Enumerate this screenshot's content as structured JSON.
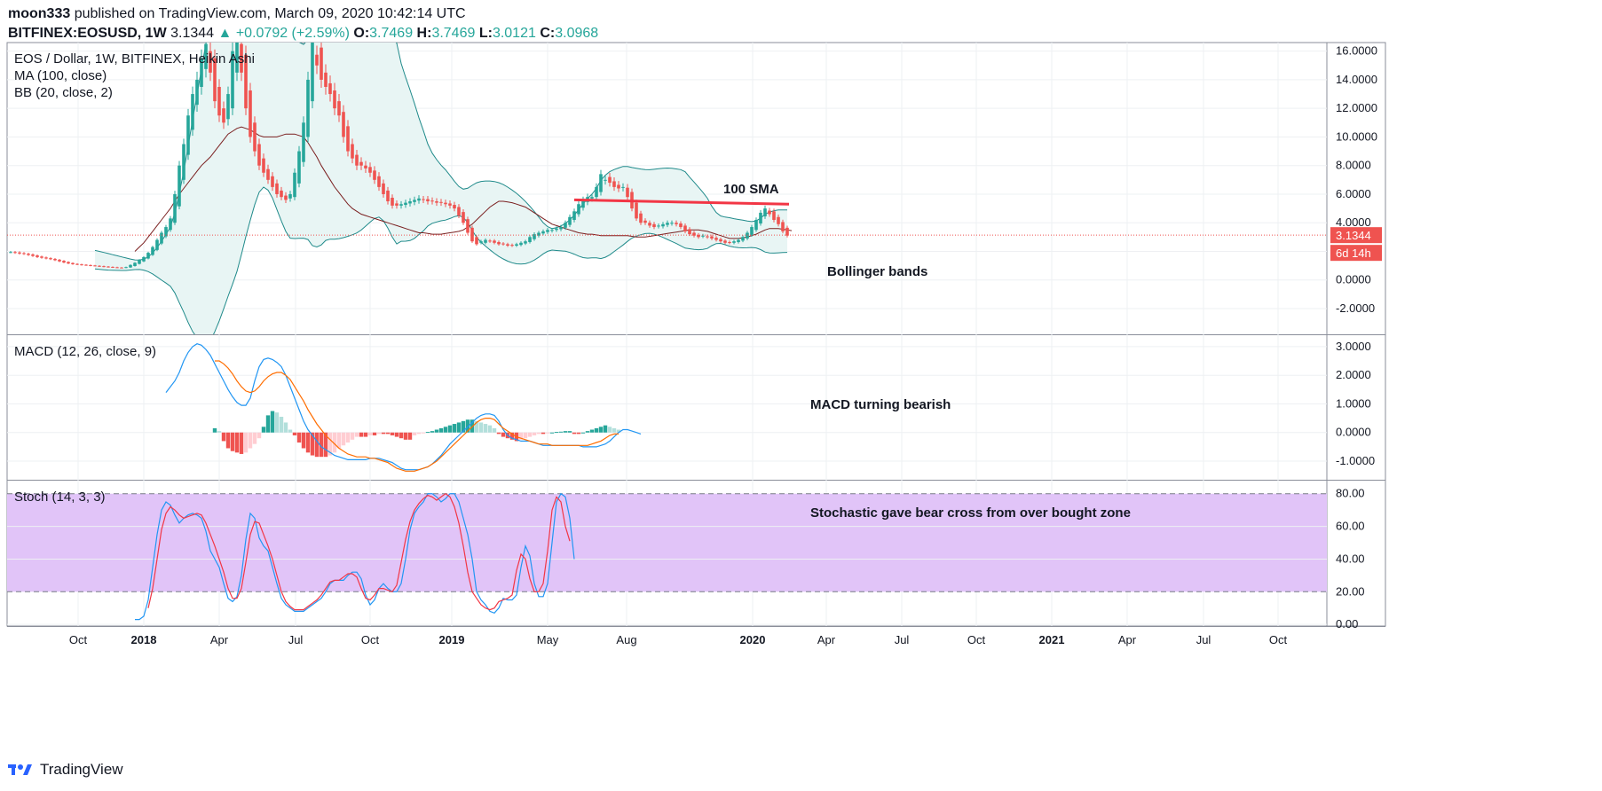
{
  "header": {
    "author": "moon333",
    "published_text": "published on TradingView.com, March 09, 2020 10:42:14 UTC",
    "symbol": "BITFINEX:EOSUSD, 1W",
    "last": "3.1344",
    "change": "+0.0792 (+2.59%)",
    "o_label": "O:",
    "o_value": "3.7469",
    "h_label": "H:",
    "h_value": "3.7469",
    "l_label": "L:",
    "l_value": "3.0121",
    "c_label": "C:",
    "c_value": "3.0968"
  },
  "footer": {
    "brand": "TradingView"
  },
  "colors": {
    "up": "#26a69a",
    "down": "#ef5350",
    "bb_line": "#1f8a8a",
    "bb_fill": "#e8f5f4",
    "ma": "#7a1f1f",
    "sma_annot": "#f23645",
    "macd": "#2196f3",
    "signal": "#ff6d00",
    "hist_up_strong": "#26a69a",
    "hist_up_weak": "#b2dfdb",
    "hist_down_strong": "#ef5350",
    "hist_down_weak": "#ffcdd2",
    "stoch_k": "#2196f3",
    "stoch_d": "#f23645",
    "stoch_band": "#e1c4f8"
  },
  "chart_data": [
    {
      "type": "candlestick",
      "title": "EOS / Dollar, 1W, BITFINEX, Heikin Ashi",
      "indicators": [
        "MA (100, close)",
        "BB (20, close, 2)"
      ],
      "ylim": [
        -3.8,
        16.6
      ],
      "yticks": [
        "16.0000",
        "14.0000",
        "12.0000",
        "10.0000",
        "8.0000",
        "6.0000",
        "4.0000",
        "2.0000",
        "0.0000",
        "-2.0000"
      ],
      "ytick_values": [
        16,
        14,
        12,
        10,
        8,
        6,
        4,
        2,
        0,
        -2
      ],
      "x_labels": [
        "Oct",
        "2018",
        "Apr",
        "Jul",
        "Oct",
        "2019",
        "May",
        "Aug",
        "2020",
        "Apr",
        "Jul",
        "Oct",
        "2021",
        "Apr",
        "Jul",
        "Oct"
      ],
      "last_price_label": "3.1344",
      "countdown_label": "6d 14h",
      "last_price": 3.1344,
      "closes": [
        1.95,
        1.9,
        1.85,
        1.82,
        1.75,
        1.68,
        1.6,
        1.55,
        1.5,
        1.45,
        1.38,
        1.3,
        1.22,
        1.15,
        1.1,
        1.08,
        1.05,
        1.03,
        1.0,
        0.98,
        0.95,
        0.93,
        0.9,
        0.88,
        0.86,
        0.85,
        0.9,
        1.05,
        1.2,
        1.4,
        1.6,
        1.9,
        2.3,
        2.8,
        3.3,
        3.7,
        4.3,
        6.0,
        8.0,
        9.5,
        11.5,
        13.0,
        14.0,
        15.5,
        16.5,
        14.5,
        12.5,
        11.5,
        11.0,
        13.0,
        16.0,
        17.0,
        14.5,
        12.0,
        10.0,
        9.0,
        8.0,
        7.5,
        7.0,
        6.5,
        6.0,
        5.8,
        5.6,
        6.0,
        7.5,
        9.0,
        11.0,
        14.0,
        17.5,
        15.0,
        14.0,
        13.5,
        13.0,
        12.0,
        11.5,
        10.0,
        9.0,
        8.5,
        8.0,
        8.0,
        7.8,
        7.5,
        7.0,
        6.5,
        6.0,
        5.5,
        5.2,
        5.2,
        5.3,
        5.4,
        5.5,
        5.6,
        5.7,
        5.6,
        5.5,
        5.5,
        5.4,
        5.4,
        5.3,
        5.2,
        5.0,
        4.5,
        4.0,
        3.3,
        2.7,
        2.5,
        2.7,
        2.8,
        2.7,
        2.6,
        2.5,
        2.5,
        2.4,
        2.4,
        2.5,
        2.6,
        2.7,
        3.0,
        3.2,
        3.3,
        3.4,
        3.5,
        3.5,
        3.6,
        3.7,
        4.0,
        4.4,
        4.8,
        5.3,
        5.6,
        5.8,
        5.8,
        6.5,
        7.4,
        7.0,
        6.8,
        6.5,
        6.4,
        6.5,
        5.8,
        5.0,
        4.3,
        4.0,
        4.0,
        3.8,
        3.7,
        3.8,
        3.9,
        4.0,
        4.0,
        3.9,
        3.7,
        3.4,
        3.2,
        3.1,
        3.0,
        3.1,
        3.0,
        2.9,
        2.8,
        2.7,
        2.6,
        2.6,
        2.7,
        2.8,
        3.0,
        3.3,
        3.7,
        4.2,
        4.7,
        5.0,
        4.6,
        4.2,
        3.9,
        3.4,
        3.1
      ],
      "ma100": [
        null,
        null,
        null,
        null,
        null,
        null,
        null,
        null,
        null,
        null,
        null,
        null,
        null,
        null,
        null,
        null,
        null,
        null,
        null,
        null,
        null,
        null,
        null,
        null,
        null,
        null,
        null,
        null,
        2.0,
        2.3,
        2.6,
        3.0,
        3.4,
        3.8,
        4.2,
        4.6,
        5.0,
        5.5,
        6.0,
        6.4,
        6.8,
        7.2,
        7.6,
        8.0,
        8.3,
        8.6,
        9.0,
        9.4,
        9.8,
        10.2,
        10.4,
        10.6,
        10.7,
        10.6,
        10.5,
        10.3,
        10.1,
        10.0,
        10.0,
        10.0,
        10.0,
        10.1,
        10.2,
        10.2,
        10.2,
        10.1,
        10.0,
        9.6,
        9.1,
        8.6,
        8.0,
        7.5,
        7.0,
        6.5,
        6.1,
        5.7,
        5.3,
        5.0,
        4.8,
        4.6,
        4.5,
        4.4,
        4.3,
        4.2,
        4.1,
        4.0,
        3.9,
        3.8,
        3.7,
        3.6,
        3.5,
        3.4,
        3.3,
        3.3,
        3.25,
        3.2,
        3.2,
        3.2,
        3.25,
        3.3,
        3.35,
        3.4,
        3.5,
        3.7,
        3.9,
        4.2,
        4.5,
        4.8,
        5.1,
        5.3,
        5.5,
        5.5,
        5.45,
        5.4,
        5.3,
        5.2,
        5.1,
        4.9,
        4.7,
        4.5,
        4.3,
        4.1,
        3.9,
        3.8,
        3.7,
        3.6,
        3.5,
        3.4,
        3.3,
        3.25,
        3.2,
        3.2,
        3.15,
        3.1,
        3.1,
        3.1,
        3.1,
        3.1,
        3.1,
        3.1,
        3.05,
        3.0,
        3.0,
        3.0,
        3.05,
        3.1,
        3.15,
        3.2,
        3.25,
        3.3,
        3.35,
        3.4,
        3.45,
        3.5,
        3.5,
        3.5,
        3.45,
        3.4,
        3.3,
        3.2,
        3.1,
        3.0,
        2.9,
        2.9,
        2.9,
        2.95,
        3.0,
        3.1,
        3.2,
        3.35,
        3.5,
        3.6,
        3.6,
        3.6,
        3.55,
        3.5,
        3.45
      ],
      "sma_annotation": {
        "from_index": 127,
        "values_start": 5.6,
        "values_end": 5.3
      }
    },
    {
      "type": "line",
      "title": "MACD (12, 26, close, 9)",
      "ylim": [
        -1.65,
        3.4
      ],
      "yticks": [
        "3.0000",
        "2.0000",
        "1.0000",
        "0.0000",
        "-1.0000"
      ],
      "ytick_values": [
        3,
        2,
        1,
        0,
        -1
      ],
      "series": [
        {
          "name": "MACD",
          "start": 35,
          "values": [
            1.4,
            1.6,
            1.8,
            2.1,
            2.5,
            2.8,
            3.0,
            3.1,
            3.05,
            2.9,
            2.7,
            2.4,
            2.1,
            1.8,
            1.5,
            1.25,
            1.05,
            0.95,
            0.95,
            1.2,
            1.8,
            2.3,
            2.55,
            2.6,
            2.55,
            2.45,
            2.3,
            2.0,
            1.6,
            1.2,
            0.8,
            0.4,
            0.1,
            -0.1,
            -0.3,
            -0.5,
            -0.6,
            -0.7,
            -0.8,
            -0.85,
            -0.9,
            -0.95,
            -0.95,
            -0.95,
            -0.95,
            -0.95,
            -0.9,
            -0.9,
            -0.9,
            -0.95,
            -1.0,
            -1.05,
            -1.15,
            -1.25,
            -1.3,
            -1.3,
            -1.3,
            -1.3,
            -1.25,
            -1.2,
            -1.1,
            -0.95,
            -0.8,
            -0.6,
            -0.4,
            -0.25,
            -0.1,
            0.05,
            0.2,
            0.35,
            0.5,
            0.6,
            0.65,
            0.65,
            0.6,
            0.4,
            0.1,
            -0.1,
            -0.2,
            -0.25,
            -0.3,
            -0.3,
            -0.3,
            -0.35,
            -0.4,
            -0.45,
            -0.45,
            -0.45,
            -0.45,
            -0.45,
            -0.45,
            -0.45,
            -0.45,
            -0.45,
            -0.5,
            -0.5,
            -0.5,
            -0.5,
            -0.45,
            -0.4,
            -0.3,
            -0.15,
            0.0,
            0.1,
            0.1,
            0.05,
            0.0,
            -0.05
          ]
        },
        {
          "name": "Signal",
          "start": 46,
          "values": [
            2.5,
            2.5,
            2.4,
            2.25,
            2.05,
            1.8,
            1.6,
            1.45,
            1.4,
            1.45,
            1.6,
            1.8,
            1.95,
            2.05,
            2.1,
            2.1,
            2.0,
            1.85,
            1.6,
            1.35,
            1.1,
            0.8,
            0.55,
            0.3,
            0.1,
            -0.1,
            -0.25,
            -0.4,
            -0.55,
            -0.65,
            -0.75,
            -0.8,
            -0.85,
            -0.85,
            -0.85,
            -0.9,
            -0.9,
            -0.95,
            -1.0,
            -1.05,
            -1.15,
            -1.25,
            -1.3,
            -1.35,
            -1.35,
            -1.35,
            -1.3,
            -1.25,
            -1.2,
            -1.1,
            -1.0,
            -0.85,
            -0.7,
            -0.55,
            -0.4,
            -0.25,
            -0.1,
            0.05,
            0.2,
            0.35,
            0.45,
            0.5,
            0.5,
            0.45,
            0.3,
            0.15,
            0.05,
            -0.05,
            -0.15,
            -0.2,
            -0.25,
            -0.3,
            -0.35,
            -0.4,
            -0.4,
            -0.4,
            -0.45,
            -0.45,
            -0.45,
            -0.45,
            -0.45,
            -0.45,
            -0.45,
            -0.45,
            -0.45,
            -0.4,
            -0.35,
            -0.3,
            -0.2,
            -0.1,
            -0.05,
            -0.05
          ]
        }
      ],
      "histogram": {
        "start": 46,
        "values": [
          0.15,
          0.05,
          -0.3,
          -0.55,
          -0.65,
          -0.7,
          -0.75,
          -0.7,
          -0.55,
          -0.4,
          -0.2,
          0.2,
          0.6,
          0.75,
          0.7,
          0.55,
          0.35,
          0.1,
          -0.1,
          -0.35,
          -0.55,
          -0.7,
          -0.8,
          -0.85,
          -0.85,
          -0.85,
          -0.8,
          -0.7,
          -0.55,
          -0.45,
          -0.35,
          -0.25,
          -0.15,
          -0.15,
          -0.15,
          -0.1,
          -0.1,
          -0.05,
          -0.05,
          -0.05,
          -0.1,
          -0.15,
          -0.2,
          -0.25,
          -0.25,
          -0.1,
          -0.05,
          -0.02,
          0.02,
          0.05,
          0.1,
          0.15,
          0.2,
          0.25,
          0.3,
          0.35,
          0.4,
          0.45,
          0.45,
          0.4,
          0.35,
          0.3,
          0.25,
          0.15,
          -0.05,
          -0.15,
          -0.2,
          -0.25,
          -0.3,
          -0.25,
          -0.2,
          -0.15,
          -0.1,
          -0.05,
          -0.05,
          -0.02,
          0.0,
          0.02,
          0.03,
          0.05,
          0.05,
          -0.05,
          -0.05,
          0.0,
          0.05,
          0.1,
          0.15,
          0.2,
          0.25,
          0.2,
          0.15,
          0.1
        ]
      }
    },
    {
      "type": "line",
      "title": "Stoch (14, 3, 3)",
      "ylim": [
        -1,
        88
      ],
      "yticks": [
        "80.00",
        "60.00",
        "40.00",
        "20.00",
        "0.00"
      ],
      "ytick_values": [
        80,
        60,
        40,
        20,
        0
      ],
      "bands": [
        20,
        80
      ],
      "series": [
        {
          "name": "%K",
          "start": 28,
          "values": [
            3,
            3,
            5,
            15,
            35,
            55,
            70,
            75,
            73,
            67,
            62,
            65,
            67,
            68,
            67,
            65,
            57,
            45,
            40,
            35,
            25,
            16,
            14,
            17,
            30,
            52,
            68,
            65,
            53,
            48,
            45,
            35,
            25,
            16,
            12,
            10,
            8,
            8,
            8,
            10,
            12,
            14,
            16,
            20,
            25,
            27,
            27,
            27,
            30,
            32,
            32,
            28,
            18,
            12,
            15,
            22,
            25,
            22,
            20,
            20,
            25,
            40,
            58,
            68,
            72,
            75,
            80,
            80,
            78,
            75,
            77,
            80,
            80,
            75,
            65,
            55,
            40,
            20,
            15,
            12,
            8,
            7,
            10,
            16,
            15,
            15,
            18,
            35,
            48,
            42,
            25,
            17,
            17,
            25,
            50,
            75,
            80,
            78,
            65,
            40
          ]
        },
        {
          "name": "%D",
          "start": 31,
          "values": [
            10,
            22,
            40,
            58,
            68,
            72,
            70,
            67,
            65,
            66,
            67,
            68,
            67,
            62,
            55,
            48,
            40,
            32,
            22,
            16,
            16,
            22,
            38,
            55,
            63,
            62,
            55,
            48,
            40,
            30,
            20,
            14,
            11,
            9,
            9,
            9,
            11,
            13,
            15,
            18,
            22,
            26,
            27,
            27,
            29,
            31,
            31,
            29,
            22,
            16,
            15,
            18,
            22,
            22,
            21,
            20,
            24,
            38,
            52,
            63,
            70,
            74,
            77,
            79,
            78,
            76,
            78,
            80,
            78,
            72,
            62,
            48,
            32,
            20,
            16,
            12,
            10,
            9,
            10,
            14,
            15,
            16,
            18,
            33,
            43,
            40,
            28,
            20,
            20,
            25,
            45,
            70,
            78,
            75,
            60,
            51
          ]
        }
      ]
    }
  ],
  "annotations": {
    "sma": "100 SMA",
    "bollinger": "Bollinger bands",
    "macd": "MACD turning bearish",
    "stoch": "Stochastic gave bear cross from over bought zone"
  }
}
